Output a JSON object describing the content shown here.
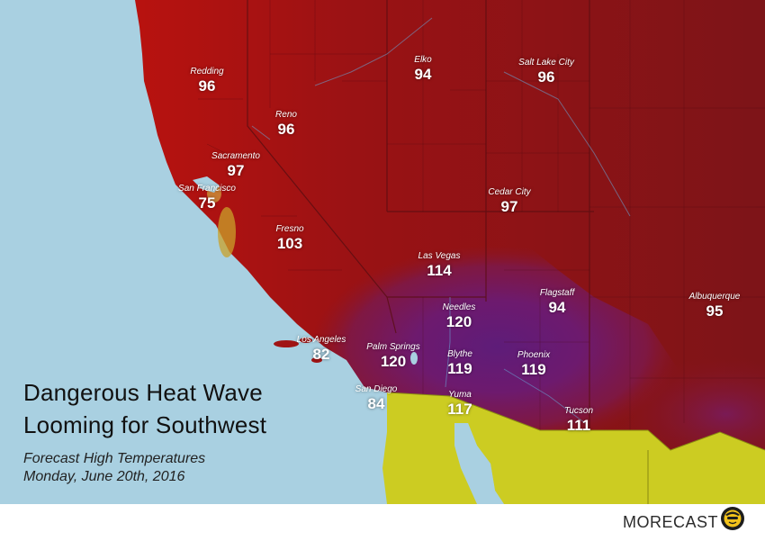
{
  "headline": {
    "line1": "Dangerous Heat Wave",
    "line2": "Looming for Southwest"
  },
  "subtitle": {
    "line1": "Forecast High Temperatures",
    "line2": "Monday, June 20th, 2016"
  },
  "brand": {
    "name": "MORECAST",
    "logo_icon": "sun-face-logo-icon"
  },
  "colors": {
    "ocean": "#a9d0e1",
    "mexico": "#cccc22",
    "hot_red": "#a01010",
    "extreme_purple": "#6a1a7a",
    "text": "#ffffff"
  },
  "cities": [
    {
      "name": "Redding",
      "temp": "96"
    },
    {
      "name": "Reno",
      "temp": "96"
    },
    {
      "name": "Sacramento",
      "temp": "97"
    },
    {
      "name": "San Francisco",
      "temp": "75"
    },
    {
      "name": "Fresno",
      "temp": "103"
    },
    {
      "name": "Elko",
      "temp": "94"
    },
    {
      "name": "Salt Lake City",
      "temp": "96"
    },
    {
      "name": "Cedar City",
      "temp": "97"
    },
    {
      "name": "Las Vegas",
      "temp": "114"
    },
    {
      "name": "Needles",
      "temp": "120"
    },
    {
      "name": "Flagstaff",
      "temp": "94"
    },
    {
      "name": "Albuquerque",
      "temp": "95"
    },
    {
      "name": "Los Angeles",
      "temp": "82"
    },
    {
      "name": "Palm Springs",
      "temp": "120"
    },
    {
      "name": "Blythe",
      "temp": "119"
    },
    {
      "name": "Phoenix",
      "temp": "119"
    },
    {
      "name": "San Diego",
      "temp": "84"
    },
    {
      "name": "Yuma",
      "temp": "117"
    },
    {
      "name": "Tucson",
      "temp": "111"
    }
  ]
}
